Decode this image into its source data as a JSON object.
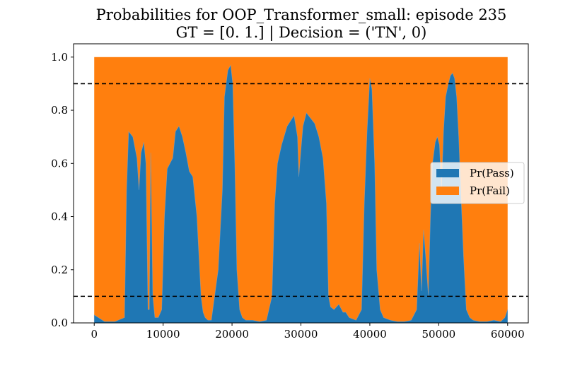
{
  "chart_data": {
    "type": "area",
    "title_line1": "Probabilities for OOP_Transformer_small: episode 235",
    "title_line2": "GT = [0. 1.] | Decision = ('TN', 0)",
    "xlabel": "",
    "ylabel": "",
    "xlim": [
      -3000,
      63000
    ],
    "ylim": [
      0.0,
      1.05
    ],
    "x_ticks": [
      0,
      10000,
      20000,
      30000,
      40000,
      50000,
      60000
    ],
    "x_tick_labels": [
      "0",
      "10000",
      "20000",
      "30000",
      "40000",
      "50000",
      "60000"
    ],
    "y_ticks": [
      0.0,
      0.2,
      0.4,
      0.6,
      0.8,
      1.0
    ],
    "y_tick_labels": [
      "0.0",
      "0.2",
      "0.4",
      "0.6",
      "0.8",
      "1.0"
    ],
    "thresholds": [
      0.9,
      0.1
    ],
    "legend_position": "center-right",
    "series": [
      {
        "name": "Pr(Pass)",
        "color": "#1f77b4",
        "x": [
          0,
          600,
          1500,
          3000,
          4400,
          4700,
          5000,
          5600,
          6200,
          6500,
          6800,
          7200,
          7500,
          7800,
          8000,
          8200,
          8500,
          8800,
          9300,
          9800,
          10200,
          10600,
          11000,
          11400,
          11800,
          12300,
          12800,
          13300,
          13800,
          14300,
          14900,
          15500,
          15800,
          16100,
          16500,
          17000,
          18000,
          18600,
          18900,
          19400,
          19800,
          20100,
          20400,
          20700,
          21100,
          21500,
          22000,
          23000,
          24000,
          25000,
          25800,
          26200,
          26600,
          27200,
          28000,
          29000,
          29500,
          29700,
          30000,
          30300,
          30800,
          31400,
          32000,
          32600,
          33200,
          33700,
          34000,
          34300,
          34800,
          35500,
          36100,
          36500,
          37000,
          38000,
          38800,
          39200,
          39600,
          40000,
          40300,
          40700,
          41000,
          41500,
          42000,
          43000,
          44000,
          45000,
          46000,
          46800,
          47200,
          47500,
          47800,
          48100,
          48500,
          48800,
          49100,
          49500,
          49800,
          50100,
          50400,
          50700,
          51000,
          51400,
          51700,
          52000,
          52300,
          52600,
          52900,
          53200,
          53600,
          54000,
          54500,
          55000,
          56000,
          57000,
          58000,
          59000,
          59600,
          60000
        ],
        "values": [
          0.03,
          0.02,
          0.005,
          0.005,
          0.02,
          0.5,
          0.72,
          0.7,
          0.62,
          0.5,
          0.64,
          0.68,
          0.6,
          0.05,
          0.05,
          0.64,
          0.1,
          0.02,
          0.02,
          0.05,
          0.4,
          0.58,
          0.6,
          0.62,
          0.72,
          0.74,
          0.7,
          0.64,
          0.57,
          0.55,
          0.4,
          0.1,
          0.04,
          0.02,
          0.01,
          0.01,
          0.2,
          0.5,
          0.85,
          0.95,
          0.97,
          0.9,
          0.6,
          0.2,
          0.05,
          0.02,
          0.01,
          0.01,
          0.005,
          0.01,
          0.1,
          0.45,
          0.6,
          0.67,
          0.74,
          0.78,
          0.7,
          0.55,
          0.65,
          0.74,
          0.79,
          0.77,
          0.75,
          0.7,
          0.62,
          0.45,
          0.1,
          0.06,
          0.05,
          0.07,
          0.04,
          0.04,
          0.02,
          0.01,
          0.05,
          0.45,
          0.72,
          0.92,
          0.88,
          0.6,
          0.2,
          0.05,
          0.02,
          0.01,
          0.005,
          0.005,
          0.01,
          0.05,
          0.3,
          0.12,
          0.35,
          0.25,
          0.1,
          0.4,
          0.6,
          0.68,
          0.7,
          0.67,
          0.5,
          0.72,
          0.85,
          0.9,
          0.93,
          0.94,
          0.92,
          0.85,
          0.7,
          0.5,
          0.25,
          0.05,
          0.02,
          0.01,
          0.005,
          0.005,
          0.01,
          0.005,
          0.02,
          0.05
        ]
      },
      {
        "name": "Pr(Fail)",
        "color": "#ff7f0e",
        "x": [
          0,
          60000
        ],
        "values": [
          1.0,
          1.0
        ]
      }
    ]
  }
}
